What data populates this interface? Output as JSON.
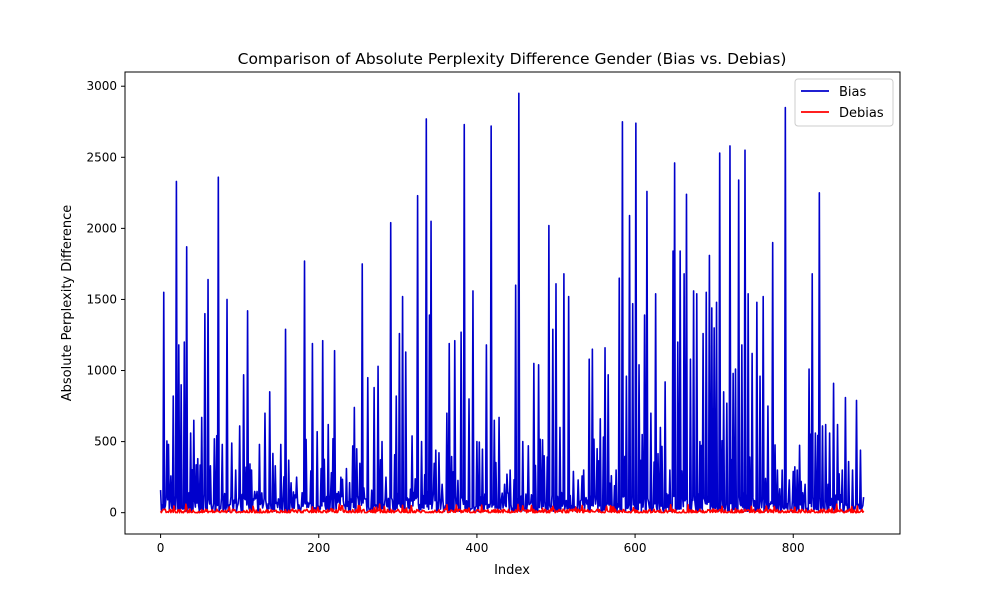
{
  "chart_data": {
    "type": "line",
    "title": "Comparison of Absolute Perplexity Difference Gender (Bias vs. Debias)",
    "xlabel": "Index",
    "ylabel": "Absolute Perplexity Difference",
    "xlim": [
      -45,
      935
    ],
    "ylim": [
      -150,
      3100
    ],
    "xticks": [
      0,
      200,
      400,
      600,
      800
    ],
    "yticks": [
      0,
      500,
      1000,
      1500,
      2000,
      2500,
      3000
    ],
    "grid": false,
    "legend": "top-right",
    "n_points": 890,
    "series": [
      {
        "name": "Bias",
        "color": "#0000cc",
        "peaks": [
          [
            4,
            1550
          ],
          [
            10,
            480
          ],
          [
            16,
            820
          ],
          [
            20,
            2330
          ],
          [
            23,
            1180
          ],
          [
            26,
            900
          ],
          [
            30,
            1200
          ],
          [
            33,
            1870
          ],
          [
            38,
            560
          ],
          [
            42,
            650
          ],
          [
            47,
            380
          ],
          [
            52,
            670
          ],
          [
            56,
            1400
          ],
          [
            60,
            1640
          ],
          [
            63,
            330
          ],
          [
            68,
            520
          ],
          [
            73,
            2360
          ],
          [
            78,
            480
          ],
          [
            84,
            1500
          ],
          [
            90,
            490
          ],
          [
            95,
            300
          ],
          [
            100,
            610
          ],
          [
            105,
            970
          ],
          [
            110,
            1420
          ],
          [
            115,
            300
          ],
          [
            125,
            480
          ],
          [
            132,
            700
          ],
          [
            138,
            850
          ],
          [
            145,
            330
          ],
          [
            152,
            480
          ],
          [
            158,
            1290
          ],
          [
            165,
            210
          ],
          [
            172,
            250
          ],
          [
            182,
            1770
          ],
          [
            192,
            1190
          ],
          [
            198,
            570
          ],
          [
            205,
            1210
          ],
          [
            212,
            620
          ],
          [
            220,
            1140
          ],
          [
            228,
            250
          ],
          [
            235,
            310
          ],
          [
            245,
            740
          ],
          [
            255,
            1750
          ],
          [
            262,
            950
          ],
          [
            270,
            880
          ],
          [
            275,
            1030
          ],
          [
            280,
            500
          ],
          [
            285,
            250
          ],
          [
            291,
            2040
          ],
          [
            298,
            820
          ],
          [
            302,
            1260
          ],
          [
            306,
            1520
          ],
          [
            310,
            1130
          ],
          [
            318,
            540
          ],
          [
            325,
            2230
          ],
          [
            330,
            500
          ],
          [
            336,
            2770
          ],
          [
            340,
            1390
          ],
          [
            342,
            2050
          ],
          [
            348,
            440
          ],
          [
            356,
            200
          ],
          [
            362,
            700
          ],
          [
            365,
            1190
          ],
          [
            372,
            1210
          ],
          [
            380,
            1270
          ],
          [
            384,
            2730
          ],
          [
            390,
            800
          ],
          [
            395,
            1560
          ],
          [
            400,
            500
          ],
          [
            405,
            110
          ],
          [
            412,
            1180
          ],
          [
            418,
            2720
          ],
          [
            422,
            650
          ],
          [
            428,
            670
          ],
          [
            435,
            200
          ],
          [
            442,
            300
          ],
          [
            449,
            1600
          ],
          [
            453,
            2950
          ],
          [
            458,
            500
          ],
          [
            465,
            470
          ],
          [
            472,
            1050
          ],
          [
            478,
            1040
          ],
          [
            485,
            400
          ],
          [
            491,
            2020
          ],
          [
            496,
            1290
          ],
          [
            500,
            1610
          ],
          [
            505,
            600
          ],
          [
            510,
            1680
          ],
          [
            516,
            1520
          ],
          [
            522,
            290
          ],
          [
            528,
            230
          ],
          [
            535,
            300
          ],
          [
            542,
            1080
          ],
          [
            546,
            1150
          ],
          [
            552,
            450
          ],
          [
            556,
            660
          ],
          [
            562,
            1160
          ],
          [
            566,
            970
          ],
          [
            570,
            260
          ],
          [
            576,
            300
          ],
          [
            580,
            1650
          ],
          [
            584,
            2750
          ],
          [
            589,
            960
          ],
          [
            593,
            2090
          ],
          [
            597,
            1470
          ],
          [
            601,
            2740
          ],
          [
            605,
            1040
          ],
          [
            609,
            550
          ],
          [
            612,
            1390
          ],
          [
            615,
            2260
          ],
          [
            620,
            700
          ],
          [
            626,
            1540
          ],
          [
            632,
            600
          ],
          [
            638,
            920
          ],
          [
            644,
            300
          ],
          [
            648,
            1840
          ],
          [
            650,
            2460
          ],
          [
            654,
            1200
          ],
          [
            657,
            1840
          ],
          [
            662,
            1680
          ],
          [
            665,
            2240
          ],
          [
            670,
            1080
          ],
          [
            674,
            1560
          ],
          [
            678,
            1540
          ],
          [
            682,
            500
          ],
          [
            686,
            1260
          ],
          [
            690,
            1550
          ],
          [
            694,
            1810
          ],
          [
            697,
            1440
          ],
          [
            700,
            1300
          ],
          [
            703,
            1480
          ],
          [
            707,
            2530
          ],
          [
            712,
            850
          ],
          [
            716,
            770
          ],
          [
            720,
            2580
          ],
          [
            724,
            980
          ],
          [
            727,
            1010
          ],
          [
            731,
            2340
          ],
          [
            735,
            1180
          ],
          [
            739,
            2550
          ],
          [
            743,
            1540
          ],
          [
            748,
            1120
          ],
          [
            754,
            1480
          ],
          [
            758,
            960
          ],
          [
            762,
            1520
          ],
          [
            768,
            750
          ],
          [
            774,
            1900
          ],
          [
            780,
            300
          ],
          [
            786,
            300
          ],
          [
            790,
            2850
          ],
          [
            795,
            230
          ],
          [
            800,
            290
          ],
          [
            805,
            300
          ],
          [
            810,
            220
          ],
          [
            815,
            200
          ],
          [
            820,
            1010
          ],
          [
            824,
            1680
          ],
          [
            828,
            560
          ],
          [
            833,
            2250
          ],
          [
            837,
            610
          ],
          [
            841,
            620
          ],
          [
            846,
            560
          ],
          [
            851,
            910
          ],
          [
            856,
            620
          ],
          [
            862,
            300
          ],
          [
            866,
            810
          ],
          [
            870,
            360
          ],
          [
            875,
            300
          ],
          [
            880,
            790
          ],
          [
            885,
            440
          ],
          [
            888,
            50
          ]
        ]
      },
      {
        "name": "Debias",
        "color": "#ff0000",
        "max": 60
      }
    ]
  }
}
